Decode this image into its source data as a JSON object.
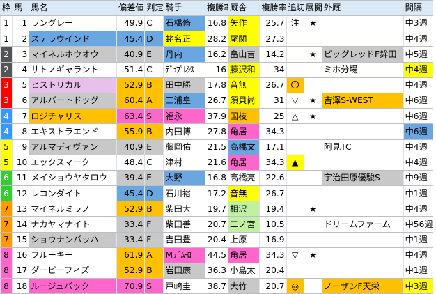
{
  "colors": {
    "header_bg": "#dbe9f7",
    "blue": "#6aa6e0",
    "gray": "#c8c8c8",
    "red_name": "#e8c0ec",
    "yellow": "#ffff00",
    "orange": "#ffc000",
    "pink": "#ff66cc",
    "green_light": "#c0f0a0"
  },
  "headers": [
    "枠",
    "馬",
    "馬名",
    "偏差値",
    "判定",
    "騎手",
    "複勝率",
    "厩舎",
    "複勝率",
    "追切",
    "展開",
    "外厩",
    "間隔"
  ],
  "rows": [
    {
      "waku": "1",
      "uma": "1",
      "name": "ラングレー",
      "dev": "49.9",
      "grade": "C",
      "jockey": "石橋脩",
      "jrate": "16.8",
      "stable": "矢作",
      "srate": "25.7",
      "oikiri": "注",
      "tenkai": "★",
      "gaikyu": "",
      "interval": "中3週"
    },
    {
      "waku": "1",
      "uma": "2",
      "name": "ステラウインド",
      "dev": "45.4",
      "grade": "D",
      "jockey": "蛯名正",
      "jrate": "28.2",
      "stable": "尾関",
      "srate": "27.3",
      "oikiri": "",
      "tenkai": "",
      "gaikyu": "",
      "interval": "中4週"
    },
    {
      "waku": "2",
      "uma": "3",
      "name": "マイネルホウオウ",
      "dev": "40.9",
      "grade": "E",
      "jockey": "丹内",
      "jrate": "16.2",
      "stable": "畠山吉",
      "srate": "14.2",
      "oikiri": "",
      "tenkai": "★",
      "gaikyu": "ビッグレッドF鉾田",
      "interval": "中5週"
    },
    {
      "waku": "2",
      "uma": "4",
      "name": "サトノギャラント",
      "dev": "51.4",
      "grade": "C",
      "jockey": "ﾃﾞｭﾌﾟﾚｼｽ",
      "jrate": "16",
      "stable": "藤沢和",
      "srate": "34",
      "oikiri": "",
      "tenkai": "",
      "gaikyu": "ミホ分場",
      "interval": "中4週"
    },
    {
      "waku": "3",
      "uma": "5",
      "name": "ヒストリカル",
      "dev": "52.9",
      "grade": "B",
      "jockey": "田中勝",
      "jrate": "17.8",
      "stable": "音無",
      "srate": "26.7",
      "oikiri": "〇",
      "tenkai": "",
      "gaikyu": "",
      "interval": "中4週"
    },
    {
      "waku": "3",
      "uma": "6",
      "name": "アルバートドッグ",
      "dev": "60.4",
      "grade": "A",
      "jockey": "三浦皇",
      "jrate": "26.7",
      "stable": "須貝尚",
      "srate": "31",
      "oikiri": "▽",
      "tenkai": "★",
      "gaikyu": "吉澤S-WEST",
      "interval": "中6週"
    },
    {
      "waku": "4",
      "uma": "7",
      "name": "ロジチャリス",
      "dev": "63.4",
      "grade": "S",
      "jockey": "福永",
      "jrate": "37.9",
      "stable": "国枝",
      "srate": "25",
      "oikiri": "△",
      "tenkai": "★",
      "gaikyu": "",
      "interval": "中6週"
    },
    {
      "waku": "4",
      "uma": "8",
      "name": "エキストラエンド",
      "dev": "55.9",
      "grade": "B",
      "jockey": "内田博",
      "jrate": "27.8",
      "stable": "角居",
      "srate": "34.3",
      "oikiri": "",
      "tenkai": "",
      "gaikyu": "",
      "interval": "中6週"
    },
    {
      "waku": "5",
      "uma": "9",
      "name": "アルマディヴァン",
      "dev": "40.9",
      "grade": "E",
      "jockey": "藤岡佑",
      "jrate": "21.5",
      "stable": "高橋文",
      "srate": "17.1",
      "oikiri": "",
      "tenkai": "",
      "gaikyu": "阿見TC",
      "interval": "中4週"
    },
    {
      "waku": "5",
      "uma": "10",
      "name": "エックスマーク",
      "dev": "48.4",
      "grade": "C",
      "jockey": "津村",
      "jrate": "21.6",
      "stable": "角居",
      "srate": "34.3",
      "oikiri": "▲",
      "tenkai": "",
      "gaikyu": "",
      "interval": "中4週"
    },
    {
      "waku": "6",
      "uma": "11",
      "name": "メイショウヤタロウ",
      "dev": "39.4",
      "grade": "E",
      "jockey": "大野",
      "jrate": "16.8",
      "stable": "高橋亮",
      "srate": "22.6",
      "oikiri": "",
      "tenkai": "",
      "gaikyu": "宇治田原優駿S",
      "interval": "中9週"
    },
    {
      "waku": "6",
      "uma": "12",
      "name": "レコンダイト",
      "dev": "45.4",
      "grade": "D",
      "jockey": "石川裕",
      "jrate": "17.2",
      "stable": "音無",
      "srate": "26.7",
      "oikiri": "",
      "tenkai": "",
      "gaikyu": "",
      "interval": "中1週"
    },
    {
      "waku": "7",
      "uma": "13",
      "name": "マイネルミラノ",
      "dev": "52.9",
      "grade": "B",
      "jockey": "柴田大",
      "jrate": "19.7",
      "stable": "相沢",
      "srate": "19.4",
      "oikiri": "",
      "tenkai": "★",
      "gaikyu": "",
      "interval": "中4週"
    },
    {
      "waku": "7",
      "uma": "14",
      "name": "ナカヤマナイト",
      "dev": "33.4",
      "grade": "F",
      "jockey": "柴田善",
      "jrate": "20.7",
      "stable": "二ノ宮",
      "srate": "10.5",
      "oikiri": "",
      "tenkai": "",
      "gaikyu": "ドリームファーム",
      "interval": "中56週"
    },
    {
      "waku": "7",
      "uma": "15",
      "name": "ショウナンバッハ",
      "dev": "33.4",
      "grade": "F",
      "jockey": "吉田豊",
      "jrate": "20.4",
      "stable": "上原",
      "srate": "16.9",
      "oikiri": "",
      "tenkai": "",
      "gaikyu": "",
      "interval": "中1週"
    },
    {
      "waku": "8",
      "uma": "16",
      "name": "フルーキー",
      "dev": "61.9",
      "grade": "A",
      "jockey": "M.ﾃﾞﾑｰﾛ",
      "jrate": "44.5",
      "stable": "角居",
      "srate": "34.3",
      "oikiri": "▽",
      "tenkai": "★",
      "gaikyu": "",
      "interval": "中4週"
    },
    {
      "waku": "8",
      "uma": "17",
      "name": "ダービーフィズ",
      "dev": "52.9",
      "grade": "B",
      "jockey": "岩田康",
      "jrate": "36.3",
      "stable": "小島太",
      "srate": "20.4",
      "oikiri": "",
      "tenkai": "",
      "gaikyu": "",
      "interval": "中1週"
    },
    {
      "waku": "8",
      "uma": "18",
      "name": "ルージュバック",
      "dev": "70.9",
      "grade": "S",
      "jockey": "戸崎圭",
      "jrate": "38.7",
      "stable": "大竹",
      "srate": "20.7",
      "oikiri": "◎",
      "tenkai": "",
      "gaikyu": "ノーザンF天栄",
      "interval": "中3週"
    }
  ]
}
